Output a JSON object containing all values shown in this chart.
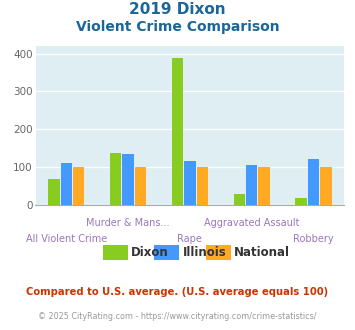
{
  "title_line1": "2019 Dixon",
  "title_line2": "Violent Crime Comparison",
  "categories": [
    "All Violent Crime",
    "Murder & Mans...",
    "Rape",
    "Aggravated Assault",
    "Robbery"
  ],
  "cat_row": [
    1,
    0,
    1,
    0,
    1
  ],
  "series": {
    "Dixon": [
      68,
      137,
      390,
      27,
      18
    ],
    "Illinois": [
      110,
      133,
      116,
      105,
      122
    ],
    "National": [
      100,
      100,
      100,
      100,
      100
    ]
  },
  "colors": {
    "Dixon": "#88cc22",
    "Illinois": "#4499ff",
    "National": "#ffaa22"
  },
  "ylim": [
    0,
    420
  ],
  "yticks": [
    0,
    100,
    200,
    300,
    400
  ],
  "bg_color": "#deeef2",
  "grid_color": "#c8dde0",
  "title_color": "#1a6699",
  "xlabel_color": "#9977bb",
  "footer_text1": "Compared to U.S. average. (U.S. average equals 100)",
  "footer_text2": "© 2025 CityRating.com - https://www.cityrating.com/crime-statistics/",
  "footer_color1": "#cc3300",
  "footer_color2": "#999999",
  "bar_width": 0.2
}
